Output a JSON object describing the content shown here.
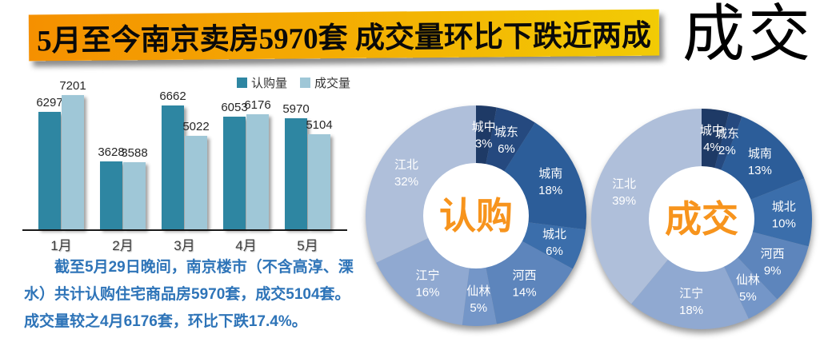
{
  "banner": {
    "title": "5月至今南京卖房5970套 成交量环比下跌近两成",
    "gradient_from": "#F59000",
    "gradient_to": "#F2CB05"
  },
  "watermark": "成交",
  "narrative": {
    "text": "截至5月29日晚间，南京楼市（不含高淳、溧水）共计认购住宅商品房5970套，成交5104套。成交量较之4月6176套，环比下跌17.4%。",
    "color": "#2E74B8"
  },
  "chart_data": [
    {
      "type": "bar",
      "title": "",
      "xlabel": "",
      "ylabel": "",
      "categories": [
        "1月",
        "2月",
        "3月",
        "4月",
        "5月"
      ],
      "series": [
        {
          "name": "认购量",
          "color": "#2E86A2",
          "values": [
            6297,
            3628,
            6662,
            6053,
            5970
          ]
        },
        {
          "name": "成交量",
          "color": "#9FC7D7",
          "values": [
            7201,
            3588,
            5022,
            6176,
            5104
          ]
        }
      ],
      "ylim": [
        0,
        7201
      ],
      "grid": false,
      "legend_position": "top-right",
      "value_labels": true
    },
    {
      "type": "pie",
      "subtype": "donut",
      "center_label": "认购",
      "center_label_color": "#F7941D",
      "slices": [
        {
          "label": "城中",
          "value": 3,
          "color": "#1E3A66"
        },
        {
          "label": "城东",
          "value": 6,
          "color": "#25497F"
        },
        {
          "label": "城南",
          "value": 18,
          "color": "#2C5D99"
        },
        {
          "label": "城北",
          "value": 6,
          "color": "#3B6EAB"
        },
        {
          "label": "河西",
          "value": 14,
          "color": "#5D85BC"
        },
        {
          "label": "仙林",
          "value": 5,
          "color": "#7496C8"
        },
        {
          "label": "江宁",
          "value": 16,
          "color": "#90A9D1"
        },
        {
          "label": "江北",
          "value": 32,
          "color": "#AFBFDA"
        }
      ]
    },
    {
      "type": "pie",
      "subtype": "donut",
      "center_label": "成交",
      "center_label_color": "#F7941D",
      "slices": [
        {
          "label": "城中",
          "value": 4,
          "color": "#1E3A66"
        },
        {
          "label": "城东",
          "value": 2,
          "color": "#25497F"
        },
        {
          "label": "城南",
          "value": 13,
          "color": "#2C5D99"
        },
        {
          "label": "城北",
          "value": 10,
          "color": "#3B6EAB"
        },
        {
          "label": "河西",
          "value": 9,
          "color": "#5D85BC"
        },
        {
          "label": "仙林",
          "value": 5,
          "color": "#7496C8"
        },
        {
          "label": "江宁",
          "value": 18,
          "color": "#90A9D1"
        },
        {
          "label": "江北",
          "value": 39,
          "color": "#AFBFDA"
        }
      ]
    }
  ]
}
